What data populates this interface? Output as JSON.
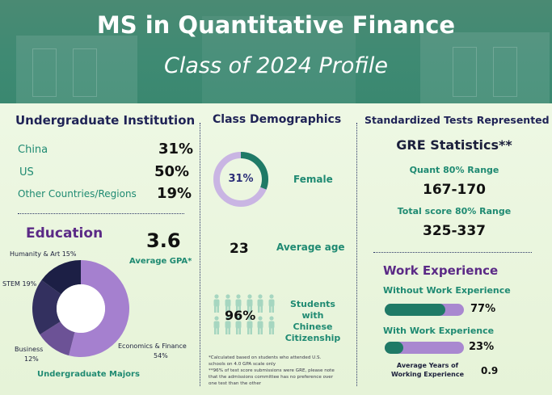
{
  "header": {
    "title": "MS in Quantitative Finance",
    "subtitle": "Class of 2024 Profile"
  },
  "undergrad_institution": {
    "heading": "Undergraduate Institution",
    "rows": [
      {
        "label": "China",
        "value": "31%"
      },
      {
        "label": "US",
        "value": "50%"
      },
      {
        "label": "Other Countries/Regions",
        "value": "19%"
      }
    ]
  },
  "education": {
    "heading": "Education",
    "gpa_value": "3.6",
    "gpa_label": "Average GPA*",
    "majors_caption": "Undergraduate Majors",
    "majors_labels": {
      "humanity": "Humanity & Art 15%",
      "stem": "STEM 19%",
      "business_name": "Business",
      "business_pct": "12%",
      "econ_name": "Economics & Finance",
      "econ_pct": "54%"
    }
  },
  "chart_data": {
    "type": "pie",
    "categories": [
      "Economics & Finance",
      "Business",
      "STEM",
      "Humanity & Art"
    ],
    "values": [
      54,
      12,
      19,
      15
    ],
    "colors": [
      "#a580cf",
      "#6c5296",
      "#33305f",
      "#1c1f45"
    ]
  },
  "demographics": {
    "heading": "Class Demographics",
    "female_pct": "31%",
    "female_fraction": 0.31,
    "female_label": "Female",
    "age_value": "23",
    "age_label": "Average age",
    "citizenship_pct": "96%",
    "citizenship_label_1": "Students",
    "citizenship_label_2": "with Chinese",
    "citizenship_label_3": "Citizenship",
    "footnote_1": "*Calculated based on students who attended U.S.",
    "footnote_2": "schools on 4.0 GPA scale only",
    "footnote_3": "**96% of test score submissions were GRE, please note",
    "footnote_4": "that the admissions committee has no preference over",
    "footnote_5": "one test than the other"
  },
  "tests": {
    "heading": "Standardized Tests Represented",
    "gre_title": "GRE Statistics**",
    "quant_label": "Quant 80% Range",
    "quant_value": "167-170",
    "total_label": "Total score 80% Range",
    "total_value": "325-337"
  },
  "work": {
    "heading": "Work Experience",
    "without_label": "Without Work Experience",
    "without_value": "77%",
    "without_fraction": 0.77,
    "with_label": "With Work Experience",
    "with_value": "23%",
    "with_fraction": 0.23,
    "avg_years_label_1": "Average Years of",
    "avg_years_label_2": "Working Experience",
    "avg_years_value": "0.9"
  },
  "colors": {
    "banner": "#3f8a73",
    "navy": "#1f2356",
    "purple": "#5b2a86",
    "teal": "#1f8a72",
    "bar_fill": "#1f7a66",
    "bar_bg": "#a988d0",
    "donut_light": "#c9b5e3"
  }
}
